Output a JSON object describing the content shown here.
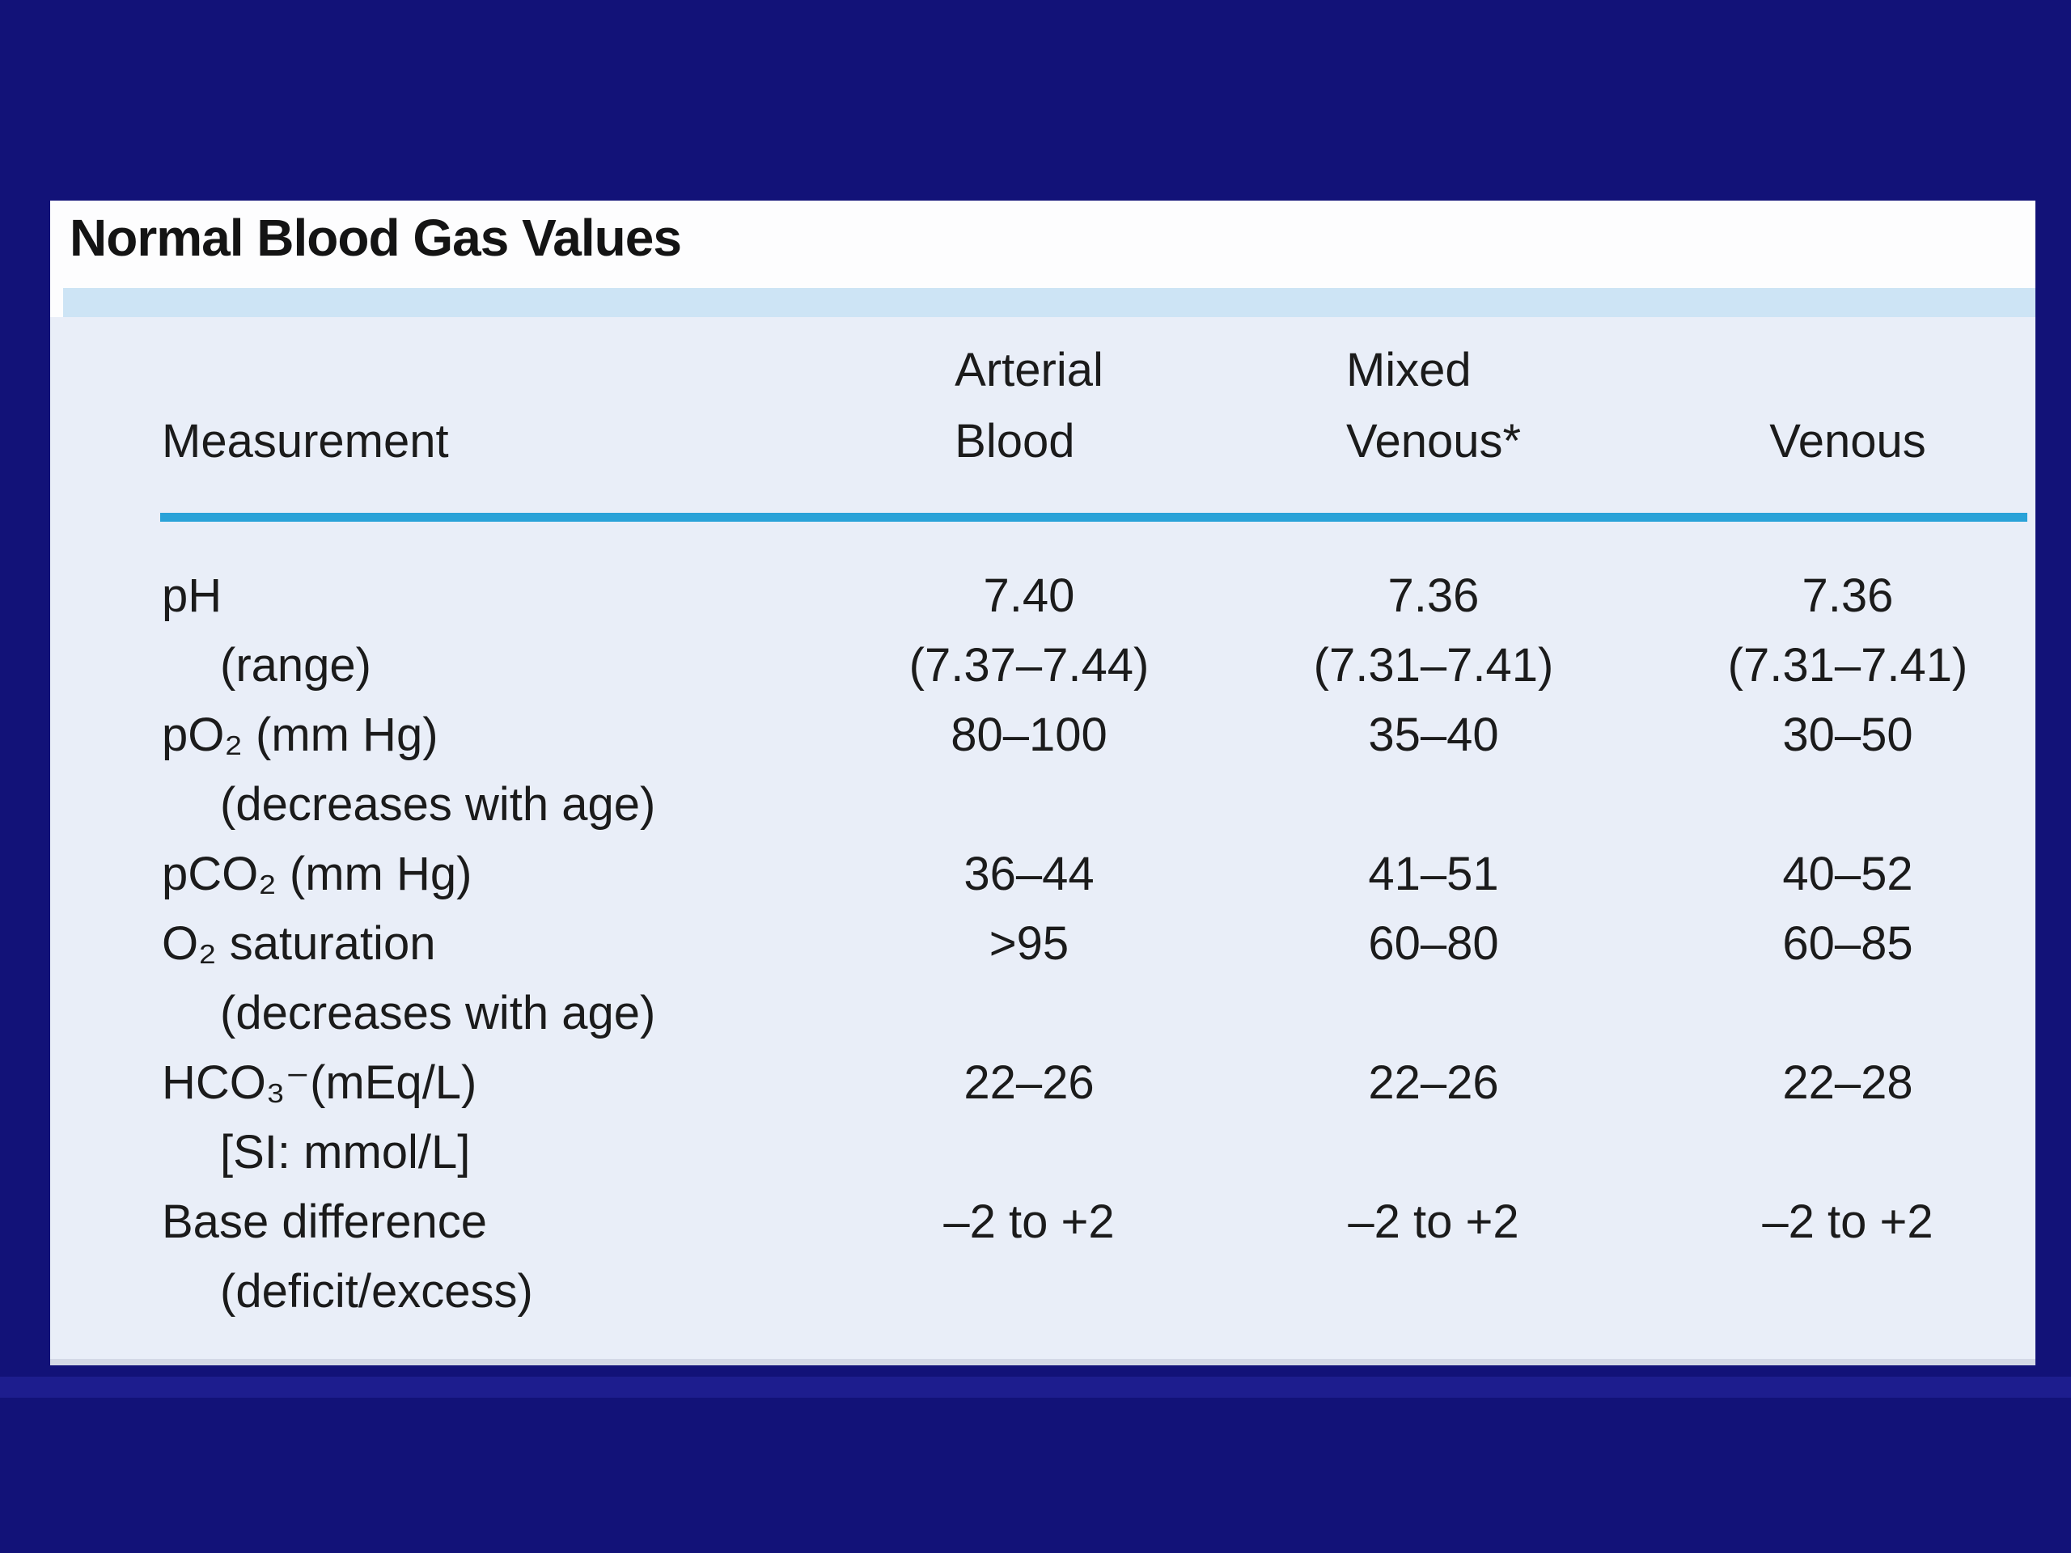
{
  "slide": {
    "title": "Normal Blood Gas Values"
  },
  "table": {
    "header": {
      "measurement": "Measurement",
      "arterial_line1": "Arterial",
      "arterial_line2": "Blood",
      "mixed_line1": "Mixed",
      "mixed_line2": "Venous*",
      "venous": "Venous"
    },
    "rows": [
      {
        "label": "pH",
        "cells": [
          "7.40",
          "7.36",
          "7.36"
        ]
      },
      {
        "label": "(range)",
        "cells": [
          "(7.37–7.44)",
          "(7.31–7.41)",
          "(7.31–7.41)"
        ]
      },
      {
        "label": "pO₂ (mm Hg)",
        "cells": [
          "80–100",
          "35–40",
          "30–50"
        ]
      },
      {
        "label": "(decreases with age)",
        "cells": [
          "",
          "",
          ""
        ]
      },
      {
        "label": "pCO₂ (mm Hg)",
        "cells": [
          "36–44",
          "41–51",
          "40–52"
        ]
      },
      {
        "label": "O₂ saturation",
        "cells": [
          ">95",
          "60–80",
          "60–85"
        ]
      },
      {
        "label": "(decreases with age)",
        "cells": [
          "",
          "",
          ""
        ]
      },
      {
        "label": "HCO₃⁻(mEq/L)",
        "cells": [
          "22–26",
          "22–26",
          "22–28"
        ]
      },
      {
        "label": "[SI: mmol/L]",
        "cells": [
          "",
          "",
          ""
        ]
      },
      {
        "label": "Base difference",
        "cells": [
          "–2 to +2",
          "–2 to +2",
          "–2 to +2"
        ]
      },
      {
        "label": "(deficit/excess)",
        "cells": [
          "",
          "",
          ""
        ]
      }
    ]
  },
  "colors": {
    "background_navy": "#121278",
    "under_card_glow": "#1d1d8e",
    "card_white": "#fdfdfe",
    "accent_band_blue": "#cde4f5",
    "table_background": "#e9eef8",
    "header_rule_cyan": "#29a2d8",
    "text": "#1b1b1b"
  }
}
